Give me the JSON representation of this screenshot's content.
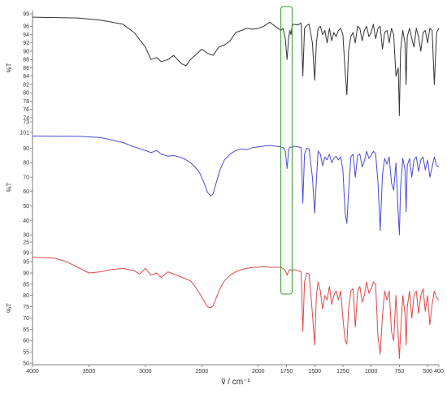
{
  "chart_data": {
    "type": "line",
    "title": "",
    "xlabel": "ṽ / cm⁻¹",
    "x_range": [
      4000,
      400
    ],
    "x_ticks": [
      "4000",
      "3500",
      "3000",
      "2500",
      "2000",
      "1750",
      "1500",
      "1250",
      "1000",
      "750",
      "500",
      "400"
    ],
    "x_tick_values": [
      4000,
      3500,
      3000,
      2500,
      2000,
      1750,
      1500,
      1250,
      1000,
      750,
      500,
      400
    ],
    "highlight": {
      "x_from": 1800,
      "x_to": 1700,
      "color": "#3a9a3a"
    },
    "grid": false,
    "panels": [
      {
        "ylabel": "%T",
        "color": "#333333",
        "ylim": [
          73,
          99
        ],
        "y_ticks": [
          73,
          74,
          76,
          78,
          80,
          82,
          84,
          86,
          88,
          90,
          92,
          94,
          96,
          99
        ],
        "series": {
          "x": [
            4000,
            3600,
            3400,
            3200,
            3100,
            3000,
            2950,
            2900,
            2860,
            2800,
            2750,
            2680,
            2640,
            2600,
            2560,
            2500,
            2450,
            2400,
            2350,
            2300,
            2250,
            2200,
            2150,
            2100,
            2050,
            2000,
            1950,
            1900,
            1850,
            1800,
            1780,
            1760,
            1745,
            1730,
            1720,
            1710,
            1700,
            1690,
            1650,
            1620,
            1605,
            1590,
            1570,
            1550,
            1520,
            1500,
            1485,
            1470,
            1450,
            1430,
            1410,
            1390,
            1370,
            1350,
            1330,
            1310,
            1290,
            1270,
            1250,
            1230,
            1215,
            1200,
            1180,
            1160,
            1140,
            1120,
            1100,
            1080,
            1060,
            1040,
            1020,
            1000,
            980,
            960,
            940,
            920,
            900,
            880,
            860,
            840,
            820,
            800,
            780,
            760,
            750,
            740,
            720,
            700,
            690,
            680,
            660,
            640,
            620,
            600,
            580,
            560,
            540,
            520,
            500,
            480,
            460,
            440,
            420,
            400
          ],
          "y": [
            98.2,
            98.0,
            97.5,
            96.5,
            94.5,
            91.0,
            88.0,
            88.5,
            87.5,
            88.0,
            89.0,
            87.0,
            86.5,
            88.0,
            89.0,
            90.5,
            89.5,
            89.0,
            91.0,
            91.5,
            92.5,
            94.5,
            95.0,
            95.5,
            95.3,
            95.5,
            96.0,
            97.0,
            96.0,
            95.0,
            95.5,
            93.0,
            88.0,
            93.5,
            95.0,
            94.0,
            96.0,
            96.5,
            96.3,
            96.8,
            84.0,
            95.5,
            96.2,
            96.5,
            92.0,
            83.0,
            92.0,
            95.5,
            96.0,
            94.0,
            95.0,
            92.0,
            95.5,
            92.5,
            94.5,
            93.5,
            95.0,
            95.5,
            94.0,
            85.0,
            79.5,
            90.0,
            93.5,
            94.5,
            92.0,
            96.0,
            95.5,
            92.5,
            95.0,
            96.0,
            93.5,
            94.5,
            96.5,
            93.0,
            95.5,
            96.0,
            90.5,
            94.5,
            95.0,
            92.0,
            95.5,
            94.0,
            84.0,
            86.0,
            74.5,
            90.0,
            95.0,
            92.0,
            82.0,
            93.5,
            95.5,
            93.0,
            91.0,
            95.5,
            93.5,
            90.0,
            94.5,
            95.0,
            92.0,
            95.5,
            95.0,
            82.0,
            94.5,
            95.5
          ]
        }
      },
      {
        "ylabel": "%T",
        "color": "#4a4ad6",
        "ylim": [
          25,
          101
        ],
        "y_ticks": [
          25,
          30,
          40,
          50,
          60,
          70,
          80,
          90,
          101
        ],
        "series": {
          "x": [
            4000,
            3600,
            3400,
            3200,
            3100,
            3000,
            2950,
            2900,
            2860,
            2800,
            2750,
            2700,
            2650,
            2600,
            2560,
            2520,
            2480,
            2450,
            2420,
            2400,
            2380,
            2340,
            2300,
            2250,
            2200,
            2150,
            2100,
            2050,
            2000,
            1950,
            1900,
            1850,
            1800,
            1780,
            1760,
            1745,
            1730,
            1720,
            1700,
            1680,
            1650,
            1620,
            1605,
            1590,
            1570,
            1550,
            1520,
            1500,
            1485,
            1470,
            1450,
            1430,
            1410,
            1390,
            1370,
            1350,
            1330,
            1310,
            1290,
            1270,
            1250,
            1230,
            1215,
            1200,
            1180,
            1160,
            1140,
            1120,
            1100,
            1080,
            1060,
            1040,
            1020,
            1000,
            980,
            960,
            940,
            920,
            900,
            880,
            860,
            840,
            820,
            800,
            780,
            760,
            750,
            740,
            720,
            700,
            690,
            680,
            660,
            640,
            620,
            600,
            580,
            560,
            540,
            520,
            500,
            480,
            460,
            440,
            420,
            400
          ],
          "y": [
            98.5,
            98.3,
            97.5,
            94.0,
            91.0,
            88.5,
            87.0,
            88.5,
            86.0,
            84.5,
            85.0,
            84.0,
            82.5,
            80.0,
            77.0,
            73.0,
            66.0,
            59.5,
            57.0,
            58.5,
            64.0,
            75.0,
            82.0,
            86.0,
            88.5,
            89.5,
            89.0,
            90.5,
            91.0,
            91.5,
            92.0,
            91.5,
            91.0,
            90.5,
            88.0,
            76.0,
            89.0,
            91.0,
            90.5,
            91.5,
            91.0,
            90.5,
            52.0,
            86.0,
            90.0,
            89.5,
            70.0,
            45.0,
            68.0,
            88.0,
            86.0,
            78.0,
            84.0,
            82.0,
            86.0,
            80.0,
            83.0,
            84.5,
            82.0,
            84.0,
            75.0,
            45.0,
            38.0,
            60.0,
            84.0,
            86.0,
            70.0,
            85.0,
            86.0,
            77.0,
            81.0,
            88.0,
            83.0,
            85.0,
            88.0,
            86.0,
            67.0,
            33.0,
            72.0,
            83.0,
            79.0,
            84.0,
            66.0,
            61.0,
            80.0,
            45.0,
            30.0,
            62.0,
            83.0,
            75.0,
            46.0,
            78.0,
            83.0,
            70.0,
            82.0,
            84.0,
            74.0,
            82.0,
            84.0,
            75.0,
            82.0,
            70.0,
            77.0,
            84.0,
            78.0,
            77.0
          ]
        }
      },
      {
        "ylabel": "%T",
        "color": "#e04848",
        "ylim": [
          50,
          99
        ],
        "y_ticks": [
          50,
          55,
          60,
          65,
          70,
          75,
          80,
          85,
          90,
          95,
          99
        ],
        "series": {
          "x": [
            4000,
            3800,
            3700,
            3600,
            3500,
            3400,
            3300,
            3200,
            3100,
            3050,
            3000,
            2950,
            2900,
            2860,
            2800,
            2750,
            2700,
            2650,
            2600,
            2560,
            2520,
            2480,
            2450,
            2420,
            2400,
            2380,
            2340,
            2300,
            2250,
            2200,
            2150,
            2100,
            2050,
            2000,
            1950,
            1900,
            1850,
            1800,
            1780,
            1760,
            1745,
            1730,
            1720,
            1700,
            1680,
            1650,
            1620,
            1605,
            1590,
            1570,
            1550,
            1520,
            1500,
            1485,
            1470,
            1450,
            1430,
            1410,
            1390,
            1370,
            1350,
            1330,
            1310,
            1290,
            1270,
            1250,
            1230,
            1215,
            1200,
            1180,
            1160,
            1140,
            1120,
            1100,
            1080,
            1060,
            1040,
            1020,
            1000,
            980,
            960,
            940,
            920,
            900,
            880,
            860,
            840,
            820,
            800,
            780,
            760,
            750,
            740,
            720,
            700,
            690,
            680,
            660,
            640,
            620,
            600,
            580,
            560,
            540,
            520,
            500,
            480,
            460,
            440,
            420,
            400
          ],
          "y": [
            97.0,
            96.5,
            95.0,
            92.5,
            90.0,
            90.5,
            91.5,
            92.0,
            91.0,
            89.5,
            92.0,
            89.0,
            90.0,
            88.0,
            90.5,
            89.5,
            88.5,
            87.5,
            86.5,
            84.0,
            81.0,
            77.5,
            75.0,
            74.5,
            75.5,
            78.0,
            83.0,
            86.5,
            89.0,
            90.5,
            91.5,
            92.0,
            92.5,
            92.5,
            93.0,
            92.5,
            92.5,
            92.5,
            92.0,
            91.0,
            89.0,
            91.0,
            91.5,
            91.0,
            91.5,
            91.0,
            90.5,
            64.0,
            86.0,
            90.0,
            89.5,
            72.0,
            58.0,
            80.0,
            86.0,
            82.0,
            74.0,
            80.0,
            78.0,
            84.0,
            76.0,
            80.0,
            82.0,
            78.0,
            82.0,
            70.0,
            60.0,
            58.5,
            74.0,
            82.0,
            83.0,
            66.0,
            82.0,
            84.0,
            77.0,
            80.0,
            86.0,
            81.0,
            83.0,
            86.0,
            85.0,
            62.0,
            54.0,
            71.0,
            82.0,
            78.0,
            82.0,
            64.0,
            60.0,
            80.0,
            62.0,
            52.0,
            63.0,
            80.0,
            72.0,
            58.0,
            75.0,
            82.0,
            70.0,
            80.0,
            82.0,
            72.0,
            80.0,
            83.0,
            73.0,
            80.0,
            67.0,
            76.0,
            82.0,
            79.0,
            78.0
          ]
        }
      }
    ]
  }
}
